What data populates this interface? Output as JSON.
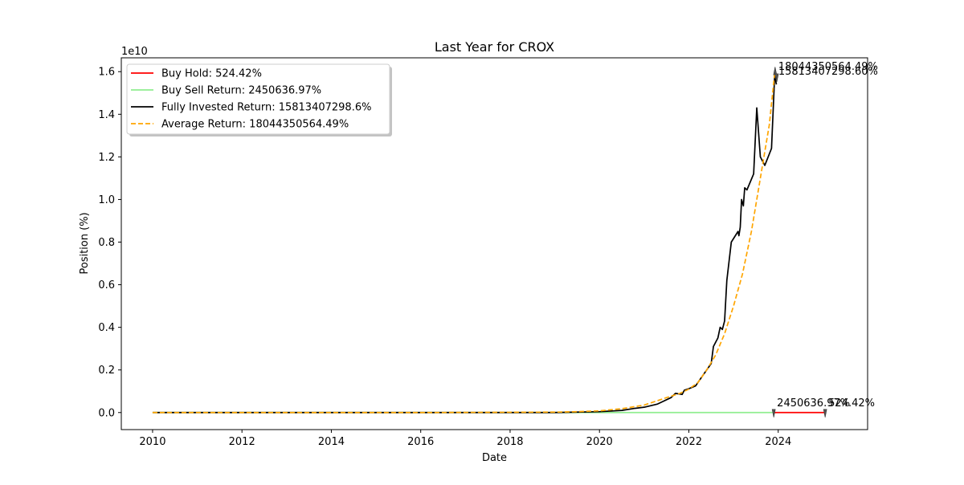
{
  "chart_data": {
    "type": "line",
    "title": "Last Year for CROX",
    "xlabel": "Date",
    "ylabel": "Position (%)",
    "y_offset_label": "1e10",
    "x_ticks": [
      "2010",
      "2012",
      "2014",
      "2016",
      "2018",
      "2020",
      "2022",
      "2024"
    ],
    "y_ticks": [
      "0.0",
      "0.2",
      "0.4",
      "0.6",
      "0.8",
      "1.0",
      "1.2",
      "1.4",
      "1.6"
    ],
    "xlim": [
      2009.3,
      2026.0
    ],
    "ylim": [
      -0.08,
      1.665
    ],
    "y_unit_scale": 10000000000.0,
    "grid": false,
    "legend_position": "upper-left",
    "colors": {
      "buy_hold": "#ff0000",
      "buy_sell": "#90ee90",
      "fully_invested": "#000000",
      "average": "#ffa500"
    },
    "series": [
      {
        "name": "Buy Hold: 524.42%",
        "key": "buy_hold",
        "style": "solid",
        "points": [
          [
            2023.9,
            0.0
          ],
          [
            2025.05,
            0.0
          ]
        ]
      },
      {
        "name": "Buy Sell Return: 2450636.97%",
        "key": "buy_sell",
        "style": "solid",
        "points": [
          [
            2010.0,
            0.0
          ],
          [
            2016.0,
            0.0
          ],
          [
            2020.0,
            0.0
          ],
          [
            2023.9,
            0.0
          ]
        ]
      },
      {
        "name": "Fully Invested Return: 15813407298.6%",
        "key": "fully_invested",
        "style": "solid",
        "points": [
          [
            2010.0,
            0.0
          ],
          [
            2016.0,
            0.0
          ],
          [
            2019.0,
            0.0
          ],
          [
            2019.5,
            0.002
          ],
          [
            2020.0,
            0.004
          ],
          [
            2020.5,
            0.01
          ],
          [
            2020.8,
            0.02
          ],
          [
            2021.0,
            0.025
          ],
          [
            2021.3,
            0.04
          ],
          [
            2021.4,
            0.05
          ],
          [
            2021.6,
            0.07
          ],
          [
            2021.7,
            0.09
          ],
          [
            2021.85,
            0.085
          ],
          [
            2021.9,
            0.105
          ],
          [
            2022.0,
            0.112
          ],
          [
            2022.15,
            0.125
          ],
          [
            2022.3,
            0.17
          ],
          [
            2022.5,
            0.23
          ],
          [
            2022.55,
            0.31
          ],
          [
            2022.65,
            0.35
          ],
          [
            2022.7,
            0.4
          ],
          [
            2022.75,
            0.39
          ],
          [
            2022.8,
            0.43
          ],
          [
            2022.85,
            0.62
          ],
          [
            2022.95,
            0.8
          ],
          [
            2023.1,
            0.85
          ],
          [
            2023.12,
            0.83
          ],
          [
            2023.15,
            0.87
          ],
          [
            2023.18,
            1.0
          ],
          [
            2023.22,
            0.97
          ],
          [
            2023.25,
            1.055
          ],
          [
            2023.3,
            1.045
          ],
          [
            2023.45,
            1.12
          ],
          [
            2023.52,
            1.43
          ],
          [
            2023.6,
            1.2
          ],
          [
            2023.7,
            1.16
          ],
          [
            2023.85,
            1.24
          ],
          [
            2023.92,
            1.58
          ],
          [
            2023.96,
            1.54
          ]
        ]
      },
      {
        "name": "Average Return: 18044350564.49%",
        "key": "average",
        "style": "dashed",
        "points": [
          [
            2010.0,
            0.0
          ],
          [
            2016.0,
            0.0
          ],
          [
            2019.0,
            0.002
          ],
          [
            2019.5,
            0.004
          ],
          [
            2020.0,
            0.008
          ],
          [
            2020.5,
            0.018
          ],
          [
            2021.0,
            0.035
          ],
          [
            2021.5,
            0.07
          ],
          [
            2021.8,
            0.09
          ],
          [
            2022.0,
            0.11
          ],
          [
            2022.2,
            0.14
          ],
          [
            2022.4,
            0.2
          ],
          [
            2022.6,
            0.27
          ],
          [
            2022.8,
            0.37
          ],
          [
            2023.0,
            0.5
          ],
          [
            2023.2,
            0.65
          ],
          [
            2023.4,
            0.85
          ],
          [
            2023.6,
            1.1
          ],
          [
            2023.8,
            1.35
          ],
          [
            2023.92,
            1.59
          ]
        ]
      }
    ],
    "markers": [
      {
        "x": 2023.93,
        "y": 1.6,
        "dir": "up"
      },
      {
        "x": 2023.97,
        "y": 1.575,
        "dir": "down"
      },
      {
        "x": 2023.9,
        "y": 0.0,
        "dir": "down"
      },
      {
        "x": 2025.05,
        "y": 0.0,
        "dir": "down"
      }
    ],
    "annotations": [
      {
        "text": "15813407298.60%",
        "x": 2023.93,
        "y": 1.6,
        "dy": 4
      },
      {
        "text": "18044350564.49%",
        "x": 2023.93,
        "y": 1.6,
        "dy": -2
      },
      {
        "text": "2450636.97%",
        "x": 2023.9,
        "y": 0.0,
        "dy": -8
      },
      {
        "text": "524.42%",
        "x": 2025.05,
        "y": 0.0,
        "dy": -8
      }
    ]
  }
}
